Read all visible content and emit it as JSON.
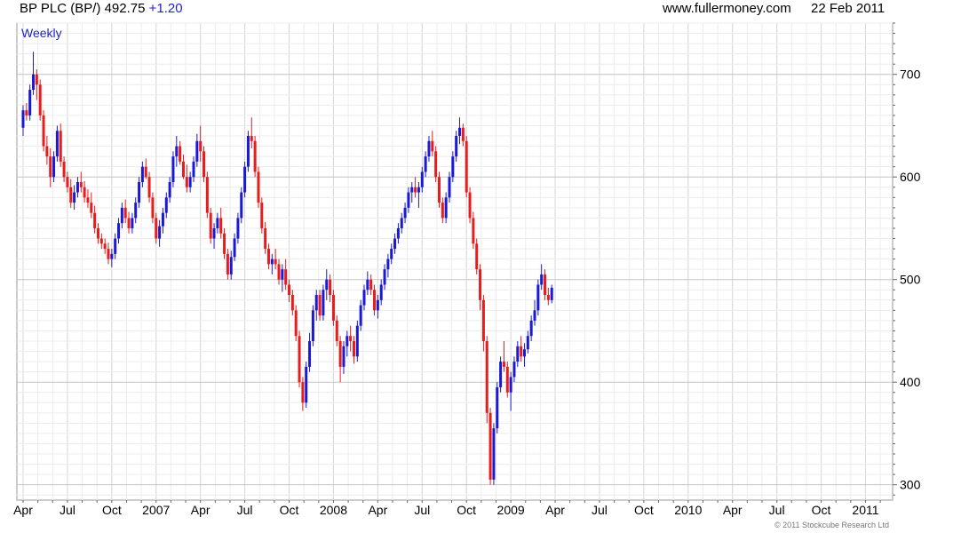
{
  "header": {
    "ticker": "BP PLC (BP/) 492.75",
    "change": "+1.20",
    "website": "www.fullermoney.com",
    "date": "22 Feb 2011"
  },
  "footer": {
    "copyright": "© 2011 Stockcube Research Ltd"
  },
  "colors": {
    "up": "#1a1ad6",
    "down": "#e81c1c",
    "grid": "#d8d8d8",
    "period_label": "#2222cc"
  },
  "chart_data": {
    "type": "candlestick",
    "period_label": "Weekly",
    "title": "BP PLC (BP/)",
    "ylim": [
      285,
      750
    ],
    "y_ticks": [
      300,
      400,
      500,
      600,
      700
    ],
    "x_ticks": [
      {
        "label": "Apr",
        "x": 0
      },
      {
        "label": "Jul",
        "x": 13
      },
      {
        "label": "Oct",
        "x": 26
      },
      {
        "label": "2007",
        "x": 39
      },
      {
        "label": "Apr",
        "x": 52
      },
      {
        "label": "Jul",
        "x": 65
      },
      {
        "label": "Oct",
        "x": 78
      },
      {
        "label": "2008",
        "x": 91
      },
      {
        "label": "Apr",
        "x": 104
      },
      {
        "label": "Jul",
        "x": 117
      },
      {
        "label": "Oct",
        "x": 130
      },
      {
        "label": "2009",
        "x": 143
      },
      {
        "label": "Apr",
        "x": 156
      },
      {
        "label": "Jul",
        "x": 169
      },
      {
        "label": "Oct",
        "x": 182
      },
      {
        "label": "2010",
        "x": 195
      },
      {
        "label": "Apr",
        "x": 208
      },
      {
        "label": "Jul",
        "x": 221
      },
      {
        "label": "Oct",
        "x": 234
      },
      {
        "label": "2011",
        "x": 247
      }
    ],
    "candles": [
      [
        648,
        670,
        640,
        665
      ],
      [
        665,
        672,
        655,
        660
      ],
      [
        660,
        690,
        655,
        685
      ],
      [
        685,
        722,
        680,
        700
      ],
      [
        700,
        705,
        675,
        690
      ],
      [
        690,
        695,
        655,
        660
      ],
      [
        660,
        665,
        625,
        630
      ],
      [
        630,
        640,
        612,
        620
      ],
      [
        620,
        628,
        590,
        600
      ],
      [
        600,
        625,
        595,
        620
      ],
      [
        620,
        650,
        615,
        645
      ],
      [
        645,
        652,
        610,
        615
      ],
      [
        615,
        620,
        595,
        600
      ],
      [
        600,
        605,
        585,
        590
      ],
      [
        590,
        598,
        570,
        575
      ],
      [
        575,
        592,
        568,
        585
      ],
      [
        585,
        600,
        580,
        595
      ],
      [
        595,
        605,
        585,
        590
      ],
      [
        590,
        596,
        575,
        580
      ],
      [
        580,
        588,
        570,
        575
      ],
      [
        575,
        585,
        560,
        565
      ],
      [
        565,
        572,
        545,
        550
      ],
      [
        550,
        555,
        535,
        540
      ],
      [
        540,
        545,
        530,
        535
      ],
      [
        535,
        540,
        525,
        530
      ],
      [
        530,
        536,
        515,
        520
      ],
      [
        520,
        530,
        512,
        525
      ],
      [
        525,
        545,
        520,
        540
      ],
      [
        540,
        560,
        535,
        555
      ],
      [
        555,
        575,
        550,
        570
      ],
      [
        570,
        578,
        555,
        560
      ],
      [
        560,
        566,
        545,
        550
      ],
      [
        550,
        565,
        545,
        560
      ],
      [
        560,
        580,
        555,
        575
      ],
      [
        575,
        600,
        570,
        595
      ],
      [
        595,
        615,
        590,
        610
      ],
      [
        610,
        618,
        598,
        600
      ],
      [
        600,
        605,
        575,
        580
      ],
      [
        580,
        585,
        555,
        560
      ],
      [
        560,
        565,
        535,
        540
      ],
      [
        540,
        558,
        532,
        552
      ],
      [
        552,
        570,
        545,
        565
      ],
      [
        565,
        585,
        560,
        580
      ],
      [
        580,
        600,
        575,
        595
      ],
      [
        595,
        625,
        590,
        620
      ],
      [
        620,
        640,
        610,
        630
      ],
      [
        630,
        635,
        612,
        615
      ],
      [
        615,
        622,
        598,
        600
      ],
      [
        600,
        612,
        585,
        590
      ],
      [
        590,
        605,
        585,
        600
      ],
      [
        600,
        620,
        595,
        615
      ],
      [
        615,
        642,
        610,
        635
      ],
      [
        635,
        650,
        615,
        625
      ],
      [
        625,
        630,
        595,
        600
      ],
      [
        600,
        605,
        560,
        565
      ],
      [
        565,
        570,
        535,
        540
      ],
      [
        540,
        555,
        530,
        550
      ],
      [
        550,
        565,
        545,
        560
      ],
      [
        560,
        570,
        540,
        545
      ],
      [
        545,
        550,
        520,
        525
      ],
      [
        525,
        530,
        500,
        505
      ],
      [
        505,
        528,
        500,
        522
      ],
      [
        522,
        545,
        518,
        540
      ],
      [
        540,
        565,
        535,
        560
      ],
      [
        560,
        590,
        555,
        585
      ],
      [
        585,
        615,
        580,
        610
      ],
      [
        610,
        645,
        605,
        640
      ],
      [
        640,
        658,
        628,
        635
      ],
      [
        635,
        640,
        600,
        605
      ],
      [
        605,
        610,
        570,
        575
      ],
      [
        575,
        580,
        545,
        550
      ],
      [
        550,
        556,
        525,
        530
      ],
      [
        530,
        535,
        510,
        515
      ],
      [
        515,
        525,
        505,
        520
      ],
      [
        520,
        530,
        510,
        515
      ],
      [
        515,
        520,
        495,
        500
      ],
      [
        500,
        515,
        488,
        510
      ],
      [
        510,
        520,
        490,
        495
      ],
      [
        495,
        500,
        478,
        485
      ],
      [
        485,
        490,
        465,
        470
      ],
      [
        470,
        475,
        440,
        445
      ],
      [
        445,
        450,
        395,
        400
      ],
      [
        400,
        405,
        372,
        380
      ],
      [
        380,
        420,
        375,
        415
      ],
      [
        415,
        448,
        410,
        440
      ],
      [
        440,
        475,
        435,
        470
      ],
      [
        470,
        490,
        460,
        485
      ],
      [
        485,
        490,
        460,
        465
      ],
      [
        465,
        495,
        460,
        490
      ],
      [
        490,
        510,
        480,
        500
      ],
      [
        500,
        505,
        478,
        485
      ],
      [
        485,
        490,
        455,
        460
      ],
      [
        460,
        465,
        435,
        440
      ],
      [
        440,
        445,
        400,
        415
      ],
      [
        415,
        440,
        408,
        435
      ],
      [
        435,
        450,
        425,
        445
      ],
      [
        445,
        455,
        430,
        440
      ],
      [
        440,
        445,
        418,
        425
      ],
      [
        425,
        460,
        420,
        455
      ],
      [
        455,
        480,
        450,
        475
      ],
      [
        475,
        495,
        470,
        490
      ],
      [
        490,
        508,
        485,
        500
      ],
      [
        500,
        505,
        485,
        490
      ],
      [
        490,
        495,
        465,
        470
      ],
      [
        470,
        485,
        462,
        480
      ],
      [
        480,
        500,
        475,
        495
      ],
      [
        495,
        515,
        490,
        510
      ],
      [
        510,
        525,
        502,
        520
      ],
      [
        520,
        535,
        515,
        530
      ],
      [
        530,
        545,
        525,
        540
      ],
      [
        540,
        555,
        535,
        550
      ],
      [
        550,
        565,
        545,
        560
      ],
      [
        560,
        575,
        555,
        570
      ],
      [
        570,
        590,
        565,
        585
      ],
      [
        585,
        595,
        575,
        590
      ],
      [
        590,
        600,
        580,
        585
      ],
      [
        585,
        595,
        570,
        590
      ],
      [
        590,
        610,
        585,
        605
      ],
      [
        605,
        625,
        600,
        620
      ],
      [
        620,
        640,
        615,
        635
      ],
      [
        635,
        645,
        620,
        625
      ],
      [
        625,
        630,
        595,
        600
      ],
      [
        600,
        605,
        570,
        575
      ],
      [
        575,
        580,
        555,
        560
      ],
      [
        560,
        585,
        555,
        580
      ],
      [
        580,
        605,
        575,
        600
      ],
      [
        600,
        625,
        595,
        620
      ],
      [
        620,
        645,
        615,
        640
      ],
      [
        640,
        658,
        632,
        648
      ],
      [
        648,
        652,
        630,
        635
      ],
      [
        635,
        640,
        580,
        585
      ],
      [
        585,
        590,
        555,
        560
      ],
      [
        560,
        566,
        530,
        535
      ],
      [
        535,
        540,
        505,
        510
      ],
      [
        510,
        515,
        470,
        480
      ],
      [
        480,
        485,
        430,
        440
      ],
      [
        440,
        445,
        360,
        370
      ],
      [
        370,
        375,
        300,
        305
      ],
      [
        305,
        360,
        300,
        355
      ],
      [
        355,
        400,
        350,
        395
      ],
      [
        395,
        425,
        390,
        420
      ],
      [
        420,
        440,
        410,
        415
      ],
      [
        415,
        420,
        385,
        390
      ],
      [
        390,
        410,
        372,
        405
      ],
      [
        405,
        425,
        400,
        420
      ],
      [
        420,
        440,
        415,
        435
      ],
      [
        435,
        445,
        420,
        425
      ],
      [
        425,
        438,
        415,
        432
      ],
      [
        432,
        450,
        428,
        445
      ],
      [
        445,
        465,
        440,
        460
      ],
      [
        460,
        480,
        455,
        470
      ],
      [
        470,
        500,
        465,
        495
      ],
      [
        495,
        515,
        490,
        505
      ],
      [
        505,
        510,
        480,
        485
      ],
      [
        485,
        492,
        475,
        480
      ],
      [
        480,
        495,
        477,
        492
      ]
    ]
  }
}
